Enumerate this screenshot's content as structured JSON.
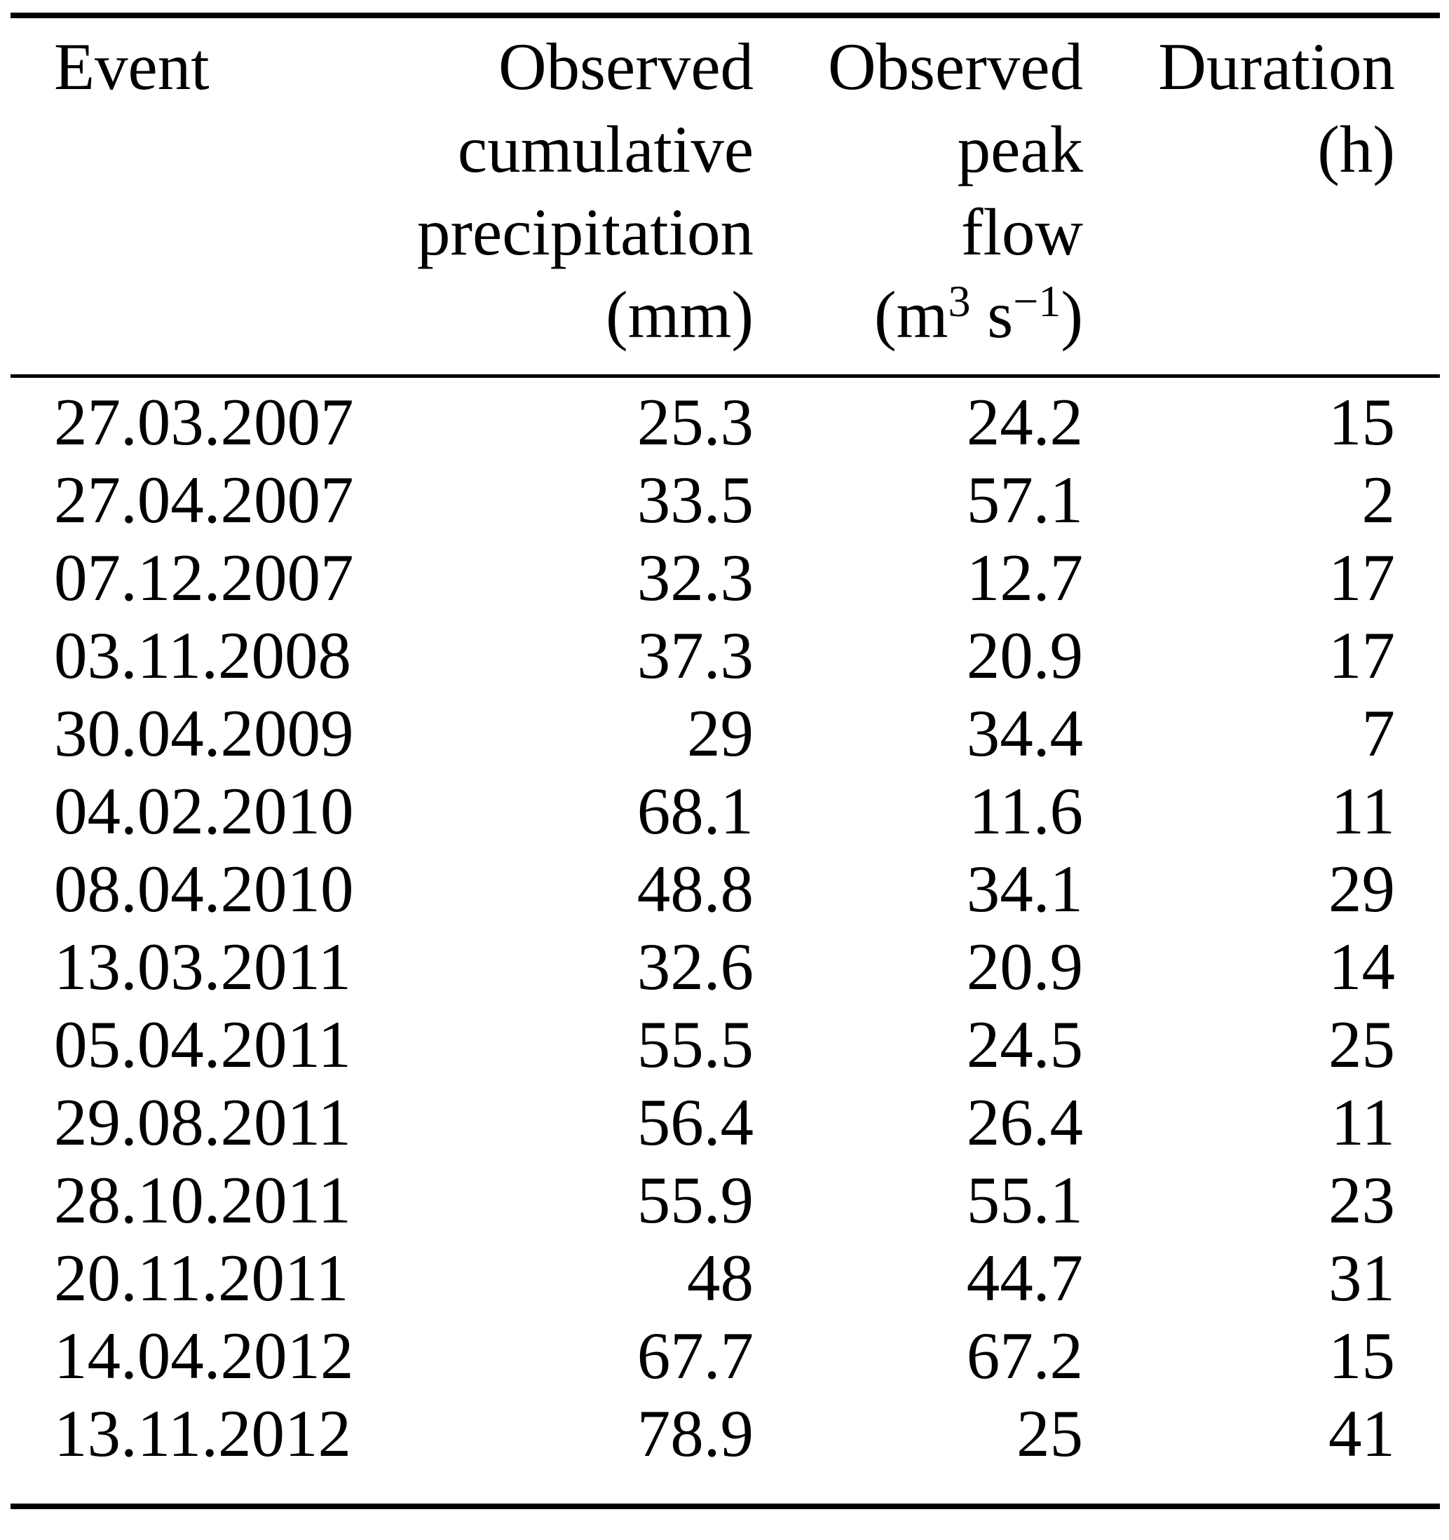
{
  "page": {
    "background_color": "#ffffff",
    "text_color": "#000000"
  },
  "table": {
    "header": {
      "event": {
        "lines": [
          "Event"
        ]
      },
      "precipitation": {
        "lines": [
          "Observed",
          "cumulative",
          "precipitation",
          "(mm)"
        ]
      },
      "peak_flow": {
        "lines": [
          "Observed",
          "peak",
          "flow"
        ],
        "unit": {
          "open": "(m",
          "exponent": "3",
          "mid": " s",
          "neg_exponent": "−1",
          "close": ")"
        }
      },
      "duration": {
        "lines": [
          "Duration",
          "(h)"
        ]
      }
    },
    "rows": [
      {
        "event": "27.03.2007",
        "precipitation_mm": "25.3",
        "peak_flow_m3s": "24.2",
        "duration_h": "15"
      },
      {
        "event": "27.04.2007",
        "precipitation_mm": "33.5",
        "peak_flow_m3s": "57.1",
        "duration_h": "2"
      },
      {
        "event": "07.12.2007",
        "precipitation_mm": "32.3",
        "peak_flow_m3s": "12.7",
        "duration_h": "17"
      },
      {
        "event": "03.11.2008",
        "precipitation_mm": "37.3",
        "peak_flow_m3s": "20.9",
        "duration_h": "17"
      },
      {
        "event": "30.04.2009",
        "precipitation_mm": "29",
        "peak_flow_m3s": "34.4",
        "duration_h": "7"
      },
      {
        "event": "04.02.2010",
        "precipitation_mm": "68.1",
        "peak_flow_m3s": "11.6",
        "duration_h": "11"
      },
      {
        "event": "08.04.2010",
        "precipitation_mm": "48.8",
        "peak_flow_m3s": "34.1",
        "duration_h": "29"
      },
      {
        "event": "13.03.2011",
        "precipitation_mm": "32.6",
        "peak_flow_m3s": "20.9",
        "duration_h": "14"
      },
      {
        "event": "05.04.2011",
        "precipitation_mm": "55.5",
        "peak_flow_m3s": "24.5",
        "duration_h": "25"
      },
      {
        "event": "29.08.2011",
        "precipitation_mm": "56.4",
        "peak_flow_m3s": "26.4",
        "duration_h": "11"
      },
      {
        "event": "28.10.2011",
        "precipitation_mm": "55.9",
        "peak_flow_m3s": "55.1",
        "duration_h": "23"
      },
      {
        "event": "20.11.2011",
        "precipitation_mm": "48",
        "peak_flow_m3s": "44.7",
        "duration_h": "31"
      },
      {
        "event": "14.04.2012",
        "precipitation_mm": "67.7",
        "peak_flow_m3s": "67.2",
        "duration_h": "15"
      },
      {
        "event": "13.11.2012",
        "precipitation_mm": "78.9",
        "peak_flow_m3s": "25",
        "duration_h": "41"
      }
    ]
  }
}
